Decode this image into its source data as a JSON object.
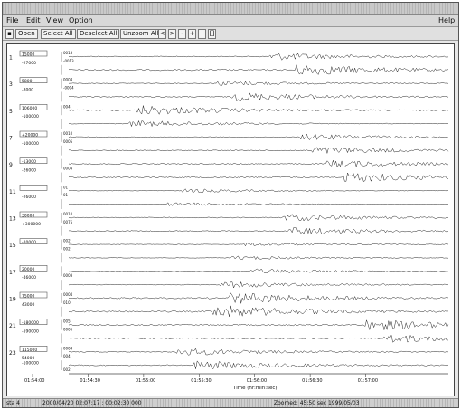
{
  "window": {
    "title": ""
  },
  "menu": {
    "file": "File",
    "edit": "Edit",
    "view": "View",
    "option": "Option",
    "help": "Help"
  },
  "toolbar": {
    "open": "Open",
    "select_all": "Select All",
    "deselect_all": "Deselect All",
    "unzoom_all": "Unzoom All",
    "zoom_in": "<",
    "zoom_out": ">",
    "pan_left": "-",
    "pan_right": "+",
    "fit": "|",
    "reset": "[]"
  },
  "traces": [
    {
      "num": "1",
      "labels": [
        "15000",
        "-27000"
      ],
      "amps": [
        "0013",
        "-0013"
      ]
    },
    {
      "num": "",
      "labels": [
        "",
        ""
      ],
      "amps": [
        "",
        ""
      ]
    },
    {
      "num": "3",
      "labels": [
        "5800",
        "-8000"
      ],
      "amps": [
        "0004",
        "-0004"
      ]
    },
    {
      "num": "",
      "labels": [
        "",
        ""
      ],
      "amps": [
        "",
        ""
      ]
    },
    {
      "num": "5",
      "labels": [
        "106000",
        "-100000"
      ],
      "amps": [
        "004",
        ""
      ]
    },
    {
      "num": "",
      "labels": [
        "",
        ""
      ],
      "amps": [
        "",
        ""
      ]
    },
    {
      "num": "7",
      "labels": [
        "+20000",
        "-100000"
      ],
      "amps": [
        "0010",
        "0005"
      ]
    },
    {
      "num": "",
      "labels": [
        "",
        ""
      ],
      "amps": [
        "",
        ""
      ]
    },
    {
      "num": "9",
      "labels": [
        "-13000",
        "-26000"
      ],
      "amps": [
        "",
        "0004"
      ]
    },
    {
      "num": "",
      "labels": [
        "",
        ""
      ],
      "amps": [
        "",
        ""
      ]
    },
    {
      "num": "11",
      "labels": [
        "",
        "-26000"
      ],
      "amps": [
        "01",
        "01"
      ]
    },
    {
      "num": "",
      "labels": [
        "",
        ""
      ],
      "amps": [
        "",
        ""
      ]
    },
    {
      "num": "13",
      "labels": [
        "30000",
        "+300000"
      ],
      "amps": [
        "0010",
        "0075"
      ]
    },
    {
      "num": "",
      "labels": [
        "",
        ""
      ],
      "amps": [
        "",
        ""
      ]
    },
    {
      "num": "15",
      "labels": [
        "-20000",
        ""
      ],
      "amps": [
        "002",
        "002"
      ]
    },
    {
      "num": "",
      "labels": [
        "",
        ""
      ],
      "amps": [
        "",
        ""
      ]
    },
    {
      "num": "17",
      "labels": [
        "20000",
        "-46000"
      ],
      "amps": [
        "",
        "0003"
      ]
    },
    {
      "num": "",
      "labels": [
        "",
        ""
      ],
      "amps": [
        "",
        ""
      ]
    },
    {
      "num": "19",
      "labels": [
        "75000",
        "43000"
      ],
      "amps": [
        "0004",
        "010"
      ]
    },
    {
      "num": "",
      "labels": [
        "",
        ""
      ],
      "amps": [
        "",
        ""
      ]
    },
    {
      "num": "21",
      "labels": [
        "-180000",
        "-590000"
      ],
      "amps": [
        "005",
        "0006"
      ]
    },
    {
      "num": "",
      "labels": [
        "",
        ""
      ],
      "amps": [
        "",
        ""
      ]
    },
    {
      "num": "23",
      "labels": [
        "115000",
        "54000"
      ],
      "amps": [
        "0004",
        "004"
      ]
    },
    {
      "num": "",
      "labels": [
        "-100000",
        ""
      ],
      "amps": [
        "",
        "002"
      ]
    }
  ],
  "time_axis": {
    "ticks": [
      "01:54:00",
      "01:54:30",
      "01:55:00",
      "01:55:30",
      "01:56:00",
      "01:56:30",
      "01:57:00"
    ],
    "label": "Time (hr:min:sec)"
  },
  "status": {
    "left": "sta 4",
    "middle": "2000/04/20 02:07:17 : 00:02:30 000",
    "right": "Zoomed: 45:50 sec   1999/05/03"
  },
  "colors": {
    "trace": "#222222",
    "grid": "#bbbbbb",
    "frame": "#444444"
  }
}
